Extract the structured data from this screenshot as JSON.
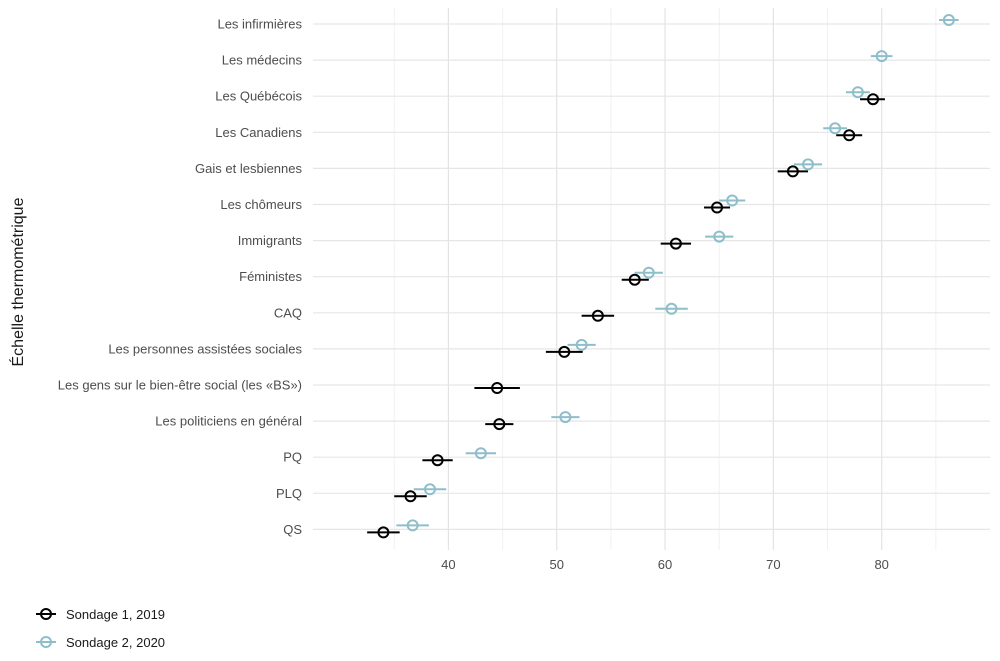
{
  "chart_data": {
    "type": "scatter",
    "title": "",
    "xlabel": "",
    "ylabel": "Échelle thermométrique",
    "xlim": [
      27.5,
      90
    ],
    "xticks": [
      40,
      50,
      60,
      70,
      80
    ],
    "grid": true,
    "legend_position": "bottom-left",
    "categories": [
      "Les infirmières",
      "Les médecins",
      "Les Québécois",
      "Les Canadiens",
      "Gais et lesbiennes",
      "Les chômeurs",
      "Immigrants",
      "Féministes",
      "CAQ",
      "Les personnes assistées sociales",
      "Les gens sur le bien-être social (les «BS»)",
      "Les politiciens en général",
      "PQ",
      "PLQ",
      "QS"
    ],
    "series": [
      {
        "name": "Sondage 1, 2019",
        "color": "#000000",
        "values": [
          null,
          null,
          79.2,
          77.0,
          71.8,
          64.8,
          61.0,
          57.2,
          53.8,
          50.7,
          44.5,
          44.7,
          39.0,
          36.5,
          34.0
        ],
        "ci_low": [
          null,
          null,
          78.0,
          75.8,
          70.4,
          63.6,
          59.6,
          56.0,
          52.3,
          49.0,
          42.4,
          43.4,
          37.6,
          35.0,
          32.5
        ],
        "ci_high": [
          null,
          null,
          80.3,
          78.2,
          73.2,
          66.0,
          62.4,
          58.5,
          55.3,
          52.4,
          46.6,
          46.0,
          40.4,
          38.0,
          35.5
        ]
      },
      {
        "name": "Sondage 2, 2020",
        "color": "#8fbecb",
        "values": [
          86.2,
          80.0,
          77.8,
          75.7,
          73.2,
          66.2,
          65.0,
          58.5,
          60.6,
          52.3,
          null,
          50.8,
          43.0,
          38.3,
          36.7
        ],
        "ci_low": [
          85.3,
          79.0,
          76.7,
          74.6,
          71.9,
          65.0,
          63.7,
          57.2,
          59.1,
          51.0,
          null,
          49.5,
          41.6,
          36.8,
          35.2
        ],
        "ci_high": [
          87.1,
          81.0,
          78.9,
          76.8,
          74.5,
          67.4,
          66.3,
          59.8,
          62.1,
          53.6,
          null,
          52.1,
          44.4,
          39.8,
          38.2
        ]
      }
    ]
  }
}
